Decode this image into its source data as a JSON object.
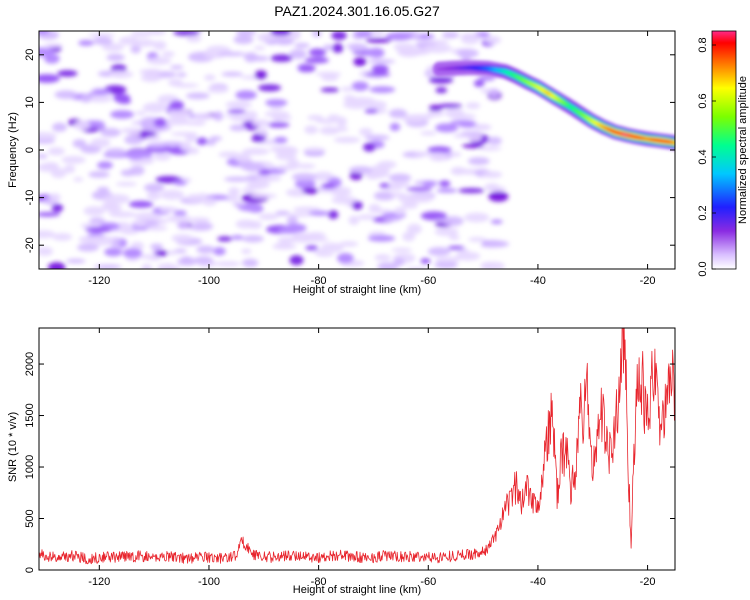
{
  "title": "PAZ1.2024.301.16.05.G27",
  "chart_data": [
    {
      "type": "heatmap",
      "xlabel": "Height of straight line (km)",
      "ylabel": "Frequency (Hz)",
      "xlim": [
        -131,
        -15
      ],
      "ylim": [
        -25,
        25
      ],
      "x_ticks": [
        -120,
        -100,
        -80,
        -60,
        -40,
        -20
      ],
      "x_tick_labels": [
        "-120",
        "-100",
        "-80",
        "-60",
        "-40",
        "-20"
      ],
      "y_ticks": [
        -20,
        -10,
        0,
        10,
        20
      ],
      "y_tick_labels": [
        "-20",
        "-10",
        "0",
        "10",
        "20"
      ],
      "colorbar": {
        "label": "Normalized spectral amplitude",
        "range": [
          0,
          0.85
        ],
        "ticks": [
          0.0,
          0.2,
          0.4,
          0.6,
          0.8
        ],
        "tick_labels": [
          "0.0",
          "0.2",
          "0.4",
          "0.6",
          "0.8"
        ],
        "colormap": "rainbow (white-violet-blue-cyan-green-yellow-red-magenta)"
      },
      "noise_region": {
        "x_range": [
          -131,
          -47
        ],
        "y_range": [
          -25,
          25
        ],
        "typical_amplitude": 0.05
      },
      "signal_ridge": {
        "x": [
          -58,
          -55,
          -52,
          -49,
          -46,
          -44,
          -42,
          -40,
          -38,
          -36,
          -34,
          -32,
          -30,
          -28,
          -26,
          -24,
          -22,
          -20,
          -18,
          -16,
          -15
        ],
        "frequency": [
          17,
          17.2,
          17.3,
          17.1,
          16.5,
          15.5,
          14.3,
          13.2,
          11.8,
          10.4,
          9.0,
          7.5,
          6.0,
          4.8,
          3.8,
          3.2,
          2.7,
          2.3,
          2.0,
          1.7,
          1.5
        ],
        "amplitude": [
          0.12,
          0.15,
          0.2,
          0.28,
          0.42,
          0.48,
          0.55,
          0.62,
          0.68,
          0.58,
          0.45,
          0.52,
          0.62,
          0.7,
          0.78,
          0.85,
          0.8,
          0.72,
          0.8,
          0.78,
          0.7
        ]
      }
    },
    {
      "type": "line",
      "xlabel": "Height of straight line (km)",
      "ylabel": "SNR (10 * v/v)",
      "xlim": [
        -131,
        -15
      ],
      "ylim": [
        0,
        2350
      ],
      "x_ticks": [
        -120,
        -100,
        -80,
        -60,
        -40,
        -20
      ],
      "x_tick_labels": [
        "-120",
        "-100",
        "-80",
        "-60",
        "-40",
        "-20"
      ],
      "y_ticks": [
        0,
        500,
        1000,
        1500,
        2000
      ],
      "y_tick_labels": [
        "0",
        "500",
        "1000",
        "1500",
        "2000"
      ],
      "series": [
        {
          "color": "#e8242c",
          "x": [
            -131,
            -128,
            -125,
            -122,
            -119,
            -116,
            -113,
            -110,
            -107,
            -104,
            -101,
            -98,
            -95,
            -94,
            -92,
            -89,
            -86,
            -83,
            -80,
            -77,
            -74,
            -71,
            -68,
            -65,
            -62,
            -59,
            -56,
            -53,
            -50,
            -49,
            -48,
            -47,
            -46,
            -45,
            -44,
            -43.5,
            -43,
            -42,
            -41,
            -40,
            -39,
            -38,
            -37.5,
            -37,
            -36.5,
            -36,
            -35,
            -34,
            -33,
            -32.5,
            -32,
            -31,
            -30,
            -29,
            -28,
            -27,
            -26,
            -25,
            -24.5,
            -24,
            -23.5,
            -23,
            -22.5,
            -22,
            -21,
            -20,
            -19,
            -18,
            -17,
            -16,
            -15
          ],
          "y": [
            150,
            120,
            140,
            110,
            130,
            125,
            135,
            120,
            140,
            110,
            130,
            115,
            140,
            290,
            150,
            125,
            135,
            140,
            120,
            145,
            130,
            115,
            140,
            125,
            130,
            120,
            135,
            150,
            170,
            220,
            320,
            420,
            560,
            700,
            820,
            700,
            650,
            850,
            700,
            620,
            1000,
            1350,
            1560,
            1150,
            700,
            1000,
            1200,
            800,
            1000,
            1620,
            1450,
            1700,
            950,
            1400,
            1500,
            1100,
            1300,
            1900,
            2350,
            1900,
            1000,
            230,
            1200,
            1650,
            1800,
            1450,
            1900,
            1550,
            1500,
            1700,
            1880
          ]
        }
      ]
    }
  ]
}
